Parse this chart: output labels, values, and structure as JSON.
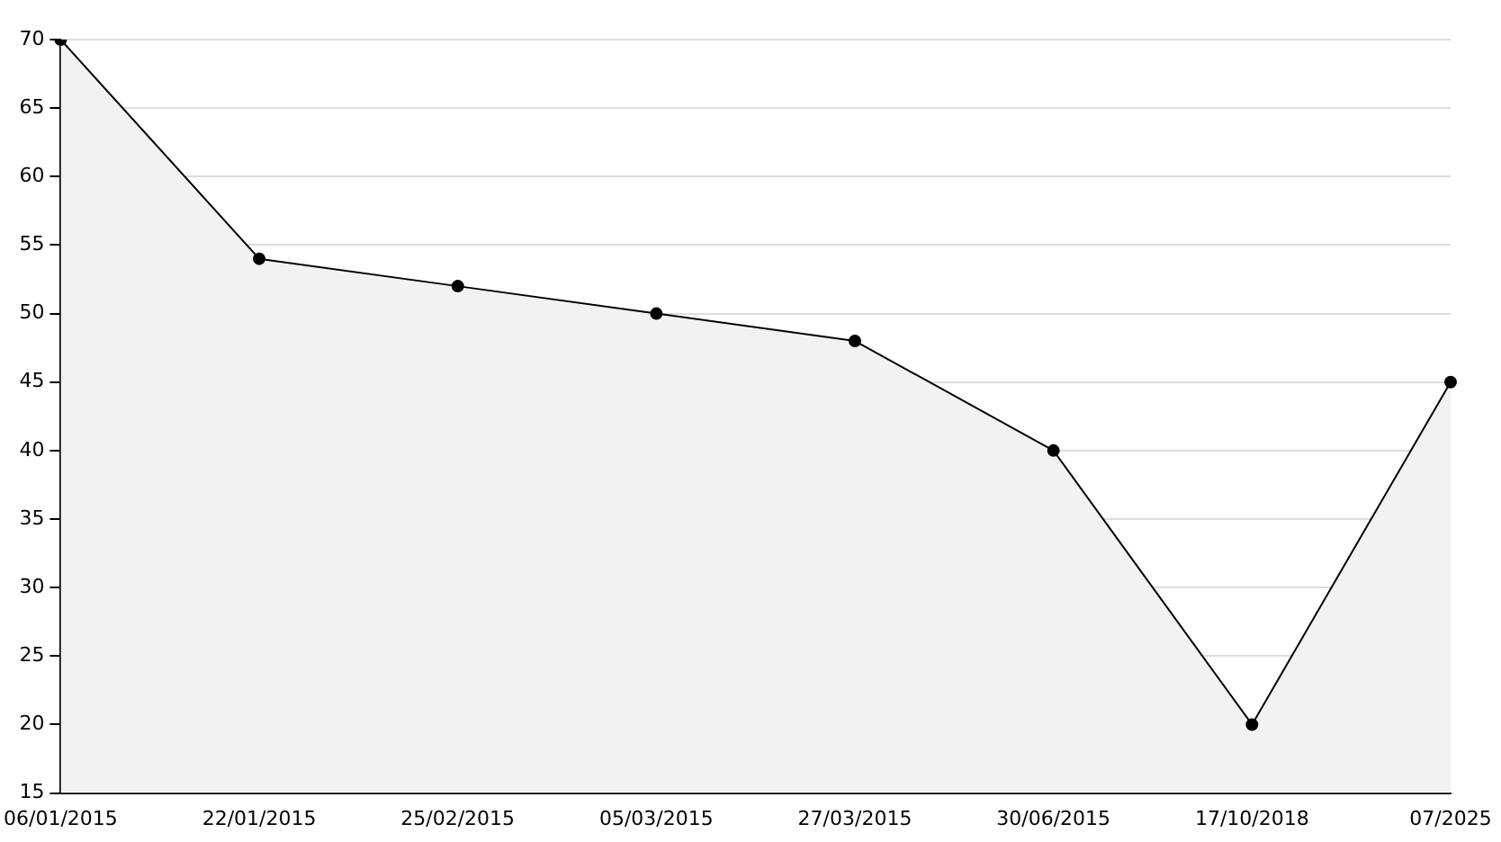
{
  "chart_data": {
    "type": "area",
    "categories": [
      "06/01/2015",
      "22/01/2015",
      "25/02/2015",
      "05/03/2015",
      "27/03/2015",
      "30/06/2015",
      "17/10/2018",
      "07/2025"
    ],
    "series": [
      {
        "color": "#000000",
        "values": [
          70,
          54,
          52,
          50,
          48,
          40,
          20,
          45
        ]
      }
    ],
    "ylim": [
      15,
      70
    ],
    "yticks": [
      15,
      20,
      25,
      30,
      35,
      40,
      45,
      50,
      55,
      60,
      65,
      70
    ],
    "grid": "y",
    "legend": false,
    "marker": "circle",
    "line_style": "solid"
  }
}
